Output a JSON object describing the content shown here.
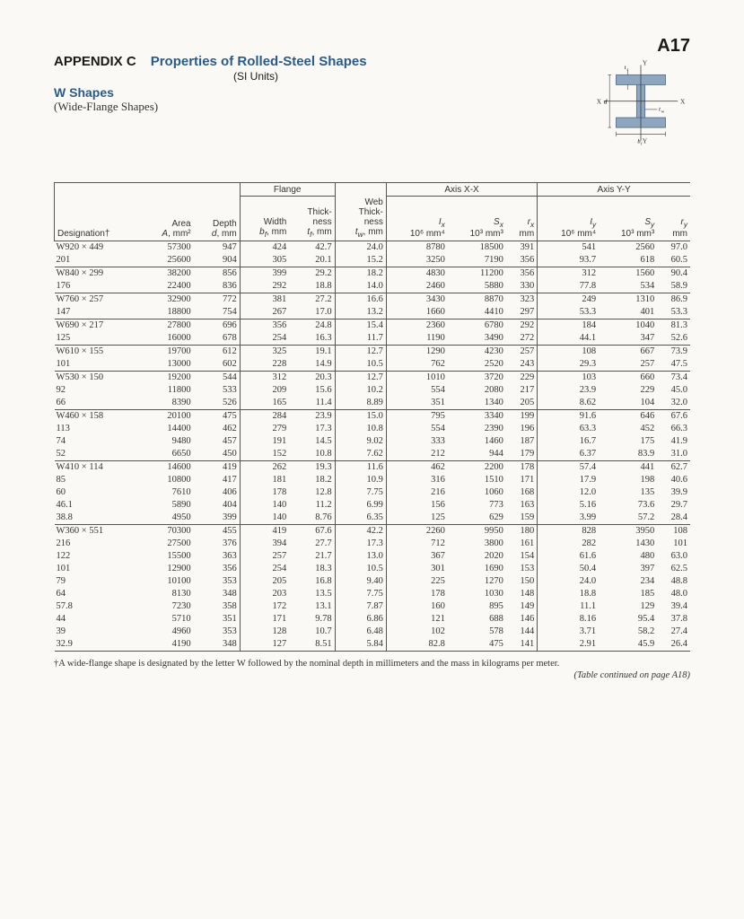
{
  "page_id": "A17",
  "appendix_label": "APPENDIX C",
  "appendix_title": "Properties of Rolled-Steel Shapes",
  "units": "(SI Units)",
  "section": "W Shapes",
  "section_sub": "(Wide-Flange Shapes)",
  "diagram_labels": {
    "tf": "t_f",
    "Y": "Y",
    "X": "X",
    "d": "d",
    "tw": "t_w",
    "bf": "b_f"
  },
  "table": {
    "headers": {
      "flange": "Flange",
      "axis_xx": "Axis X-X",
      "axis_yy": "Axis Y-Y",
      "designation": "Designation†",
      "area": "Area\nA, mm²",
      "depth": "Depth\nd, mm",
      "width": "Width\nb_f, mm",
      "tf": "Thick-\nness\nt_f, mm",
      "tw": "Web\nThick-\nness\nt_w, mm",
      "ix": "I_x\n10⁶ mm⁴",
      "sx": "S_x\n10³ mm³",
      "rx": "r_x\nmm",
      "iy": "I_y\n10⁶ mm⁴",
      "sy": "S_y\n10³ mm³",
      "ry": "r_y\nmm"
    },
    "groups": [
      {
        "rows": [
          {
            "d": "W920 × 449",
            "a": "57300",
            "depth": "947",
            "bf": "424",
            "tf": "42.7",
            "tw": "24.0",
            "ix": "8780",
            "sx": "18500",
            "rx": "391",
            "iy": "541",
            "sy": "2560",
            "ry": "97.0"
          },
          {
            "d": "201",
            "a": "25600",
            "depth": "904",
            "bf": "305",
            "tf": "20.1",
            "tw": "15.2",
            "ix": "3250",
            "sx": "7190",
            "rx": "356",
            "iy": "93.7",
            "sy": "618",
            "ry": "60.5"
          }
        ]
      },
      {
        "rows": [
          {
            "d": "W840 × 299",
            "a": "38200",
            "depth": "856",
            "bf": "399",
            "tf": "29.2",
            "tw": "18.2",
            "ix": "4830",
            "sx": "11200",
            "rx": "356",
            "iy": "312",
            "sy": "1560",
            "ry": "90.4"
          },
          {
            "d": "176",
            "a": "22400",
            "depth": "836",
            "bf": "292",
            "tf": "18.8",
            "tw": "14.0",
            "ix": "2460",
            "sx": "5880",
            "rx": "330",
            "iy": "77.8",
            "sy": "534",
            "ry": "58.9"
          }
        ]
      },
      {
        "rows": [
          {
            "d": "W760 × 257",
            "a": "32900",
            "depth": "772",
            "bf": "381",
            "tf": "27.2",
            "tw": "16.6",
            "ix": "3430",
            "sx": "8870",
            "rx": "323",
            "iy": "249",
            "sy": "1310",
            "ry": "86.9"
          },
          {
            "d": "147",
            "a": "18800",
            "depth": "754",
            "bf": "267",
            "tf": "17.0",
            "tw": "13.2",
            "ix": "1660",
            "sx": "4410",
            "rx": "297",
            "iy": "53.3",
            "sy": "401",
            "ry": "53.3"
          }
        ]
      },
      {
        "rows": [
          {
            "d": "W690 × 217",
            "a": "27800",
            "depth": "696",
            "bf": "356",
            "tf": "24.8",
            "tw": "15.4",
            "ix": "2360",
            "sx": "6780",
            "rx": "292",
            "iy": "184",
            "sy": "1040",
            "ry": "81.3"
          },
          {
            "d": "125",
            "a": "16000",
            "depth": "678",
            "bf": "254",
            "tf": "16.3",
            "tw": "11.7",
            "ix": "1190",
            "sx": "3490",
            "rx": "272",
            "iy": "44.1",
            "sy": "347",
            "ry": "52.6"
          }
        ]
      },
      {
        "rows": [
          {
            "d": "W610 × 155",
            "a": "19700",
            "depth": "612",
            "bf": "325",
            "tf": "19.1",
            "tw": "12.7",
            "ix": "1290",
            "sx": "4230",
            "rx": "257",
            "iy": "108",
            "sy": "667",
            "ry": "73.9"
          },
          {
            "d": "101",
            "a": "13000",
            "depth": "602",
            "bf": "228",
            "tf": "14.9",
            "tw": "10.5",
            "ix": "762",
            "sx": "2520",
            "rx": "243",
            "iy": "29.3",
            "sy": "257",
            "ry": "47.5"
          }
        ]
      },
      {
        "rows": [
          {
            "d": "W530 × 150",
            "a": "19200",
            "depth": "544",
            "bf": "312",
            "tf": "20.3",
            "tw": "12.7",
            "ix": "1010",
            "sx": "3720",
            "rx": "229",
            "iy": "103",
            "sy": "660",
            "ry": "73.4"
          },
          {
            "d": "92",
            "a": "11800",
            "depth": "533",
            "bf": "209",
            "tf": "15.6",
            "tw": "10.2",
            "ix": "554",
            "sx": "2080",
            "rx": "217",
            "iy": "23.9",
            "sy": "229",
            "ry": "45.0"
          },
          {
            "d": "66",
            "a": "8390",
            "depth": "526",
            "bf": "165",
            "tf": "11.4",
            "tw": "8.89",
            "ix": "351",
            "sx": "1340",
            "rx": "205",
            "iy": "8.62",
            "sy": "104",
            "ry": "32.0"
          }
        ]
      },
      {
        "rows": [
          {
            "d": "W460 × 158",
            "a": "20100",
            "depth": "475",
            "bf": "284",
            "tf": "23.9",
            "tw": "15.0",
            "ix": "795",
            "sx": "3340",
            "rx": "199",
            "iy": "91.6",
            "sy": "646",
            "ry": "67.6"
          },
          {
            "d": "113",
            "a": "14400",
            "depth": "462",
            "bf": "279",
            "tf": "17.3",
            "tw": "10.8",
            "ix": "554",
            "sx": "2390",
            "rx": "196",
            "iy": "63.3",
            "sy": "452",
            "ry": "66.3"
          },
          {
            "d": "74",
            "a": "9480",
            "depth": "457",
            "bf": "191",
            "tf": "14.5",
            "tw": "9.02",
            "ix": "333",
            "sx": "1460",
            "rx": "187",
            "iy": "16.7",
            "sy": "175",
            "ry": "41.9"
          },
          {
            "d": "52",
            "a": "6650",
            "depth": "450",
            "bf": "152",
            "tf": "10.8",
            "tw": "7.62",
            "ix": "212",
            "sx": "944",
            "rx": "179",
            "iy": "6.37",
            "sy": "83.9",
            "ry": "31.0"
          }
        ]
      },
      {
        "rows": [
          {
            "d": "W410 × 114",
            "a": "14600",
            "depth": "419",
            "bf": "262",
            "tf": "19.3",
            "tw": "11.6",
            "ix": "462",
            "sx": "2200",
            "rx": "178",
            "iy": "57.4",
            "sy": "441",
            "ry": "62.7"
          },
          {
            "d": "85",
            "a": "10800",
            "depth": "417",
            "bf": "181",
            "tf": "18.2",
            "tw": "10.9",
            "ix": "316",
            "sx": "1510",
            "rx": "171",
            "iy": "17.9",
            "sy": "198",
            "ry": "40.6"
          },
          {
            "d": "60",
            "a": "7610",
            "depth": "406",
            "bf": "178",
            "tf": "12.8",
            "tw": "7.75",
            "ix": "216",
            "sx": "1060",
            "rx": "168",
            "iy": "12.0",
            "sy": "135",
            "ry": "39.9"
          },
          {
            "d": "46.1",
            "a": "5890",
            "depth": "404",
            "bf": "140",
            "tf": "11.2",
            "tw": "6.99",
            "ix": "156",
            "sx": "773",
            "rx": "163",
            "iy": "5.16",
            "sy": "73.6",
            "ry": "29.7"
          },
          {
            "d": "38.8",
            "a": "4950",
            "depth": "399",
            "bf": "140",
            "tf": "8.76",
            "tw": "6.35",
            "ix": "125",
            "sx": "629",
            "rx": "159",
            "iy": "3.99",
            "sy": "57.2",
            "ry": "28.4"
          }
        ]
      },
      {
        "rows": [
          {
            "d": "W360 × 551",
            "a": "70300",
            "depth": "455",
            "bf": "419",
            "tf": "67.6",
            "tw": "42.2",
            "ix": "2260",
            "sx": "9950",
            "rx": "180",
            "iy": "828",
            "sy": "3950",
            "ry": "108"
          },
          {
            "d": "216",
            "a": "27500",
            "depth": "376",
            "bf": "394",
            "tf": "27.7",
            "tw": "17.3",
            "ix": "712",
            "sx": "3800",
            "rx": "161",
            "iy": "282",
            "sy": "1430",
            "ry": "101"
          },
          {
            "d": "122",
            "a": "15500",
            "depth": "363",
            "bf": "257",
            "tf": "21.7",
            "tw": "13.0",
            "ix": "367",
            "sx": "2020",
            "rx": "154",
            "iy": "61.6",
            "sy": "480",
            "ry": "63.0"
          },
          {
            "d": "101",
            "a": "12900",
            "depth": "356",
            "bf": "254",
            "tf": "18.3",
            "tw": "10.5",
            "ix": "301",
            "sx": "1690",
            "rx": "153",
            "iy": "50.4",
            "sy": "397",
            "ry": "62.5"
          },
          {
            "d": "79",
            "a": "10100",
            "depth": "353",
            "bf": "205",
            "tf": "16.8",
            "tw": "9.40",
            "ix": "225",
            "sx": "1270",
            "rx": "150",
            "iy": "24.0",
            "sy": "234",
            "ry": "48.8"
          },
          {
            "d": "64",
            "a": "8130",
            "depth": "348",
            "bf": "203",
            "tf": "13.5",
            "tw": "7.75",
            "ix": "178",
            "sx": "1030",
            "rx": "148",
            "iy": "18.8",
            "sy": "185",
            "ry": "48.0"
          },
          {
            "d": "57.8",
            "a": "7230",
            "depth": "358",
            "bf": "172",
            "tf": "13.1",
            "tw": "7.87",
            "ix": "160",
            "sx": "895",
            "rx": "149",
            "iy": "11.1",
            "sy": "129",
            "ry": "39.4"
          },
          {
            "d": "44",
            "a": "5710",
            "depth": "351",
            "bf": "171",
            "tf": "9.78",
            "tw": "6.86",
            "ix": "121",
            "sx": "688",
            "rx": "146",
            "iy": "8.16",
            "sy": "95.4",
            "ry": "37.8"
          },
          {
            "d": "39",
            "a": "4960",
            "depth": "353",
            "bf": "128",
            "tf": "10.7",
            "tw": "6.48",
            "ix": "102",
            "sx": "578",
            "rx": "144",
            "iy": "3.71",
            "sy": "58.2",
            "ry": "27.4"
          },
          {
            "d": "32.9",
            "a": "4190",
            "depth": "348",
            "bf": "127",
            "tf": "8.51",
            "tw": "5.84",
            "ix": "82.8",
            "sx": "475",
            "rx": "141",
            "iy": "2.91",
            "sy": "45.9",
            "ry": "26.4"
          }
        ]
      }
    ]
  },
  "footnote": "†A wide-flange shape is designated by the letter W followed by the nominal depth in millimeters and the mass in kilograms per meter.",
  "continued": "(Table continued on page A18)",
  "colors": {
    "heading": "#2a5a8a",
    "text": "#333333",
    "rule": "#555555",
    "bg": "#fbf9f5",
    "steel": "#8ea6bf",
    "steel_edge": "#5b7490"
  }
}
